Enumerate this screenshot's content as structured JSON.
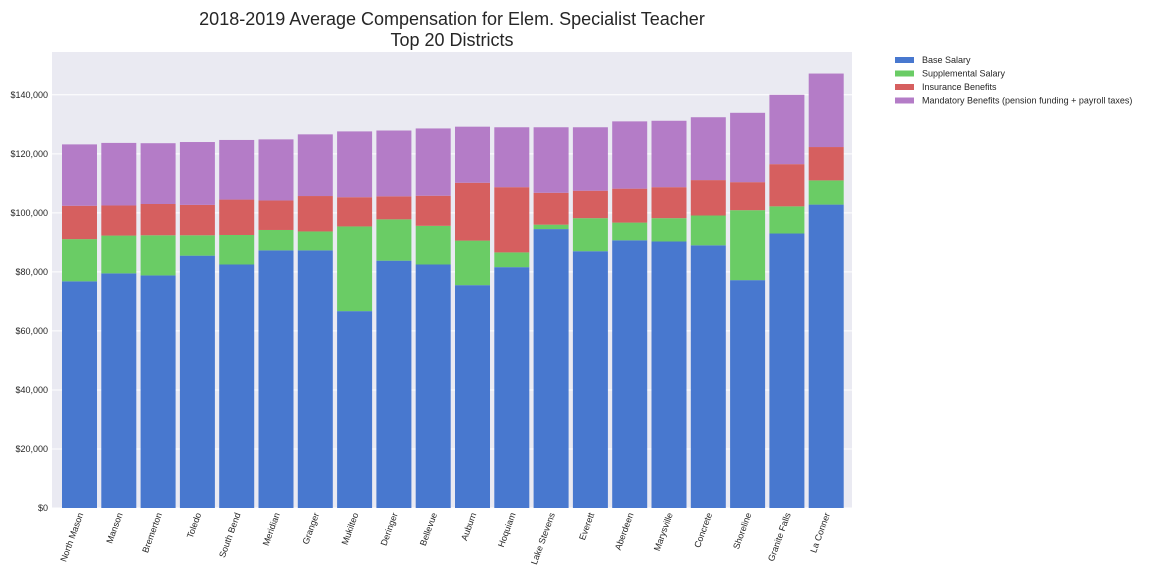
{
  "chart_data": {
    "type": "bar",
    "stacked": true,
    "title": [
      "2018-2019 Average Compensation for Elem. Specialist Teacher",
      "Top 20 Districts"
    ],
    "xlabel": "",
    "ylabel": "",
    "ylim": [
      0,
      150000
    ],
    "yticks": [
      0,
      20000,
      40000,
      60000,
      80000,
      100000,
      120000,
      140000
    ],
    "ytick_labels": [
      "$0",
      "$20,000",
      "$40,000",
      "$60,000",
      "$80,000",
      "$100,000",
      "$120,000",
      "$140,000"
    ],
    "grid": true,
    "legend_position": "outside-top-right",
    "categories": [
      "North Mason",
      "Manson",
      "Bremerton",
      "Toledo",
      "South Bend",
      "Meridian",
      "Granger",
      "Mukilteo",
      "Deringer",
      "Bellevue",
      "Auburn",
      "Hoquiam",
      "Lake Stevens",
      "Everett",
      "Aberdeen",
      "Marysville",
      "Concrete",
      "Shoreline",
      "Granite Falls",
      "La Conner"
    ],
    "series": [
      {
        "name": "Base Salary",
        "color": "#4878cf",
        "values": [
          76800,
          79500,
          78800,
          85500,
          82500,
          87300,
          87300,
          66700,
          83800,
          82500,
          75500,
          81600,
          94500,
          87000,
          90700,
          90300,
          89000,
          77200,
          93000,
          102800
        ]
      },
      {
        "name": "Supplemental Salary",
        "color": "#6acc65",
        "values": [
          14300,
          12800,
          13600,
          6900,
          10000,
          6900,
          6400,
          28700,
          14000,
          13100,
          15100,
          5000,
          1500,
          11200,
          6000,
          7900,
          10100,
          23700,
          9200,
          8200
        ]
      },
      {
        "name": "Insurance Benefits",
        "color": "#d65f5f",
        "values": [
          11300,
          10200,
          10600,
          10300,
          12000,
          10000,
          12000,
          9900,
          7800,
          10200,
          19600,
          22100,
          10800,
          9300,
          11500,
          10500,
          12000,
          9500,
          14300,
          11300
        ]
      },
      {
        "name": "Mandatory Benefits (pension funding + payroll taxes)",
        "color": "#b47cc7",
        "values": [
          20800,
          21200,
          20600,
          21300,
          20200,
          20700,
          20900,
          22300,
          22300,
          22800,
          19000,
          20300,
          22200,
          21500,
          22800,
          22500,
          21300,
          23500,
          23500,
          24900
        ]
      }
    ]
  }
}
